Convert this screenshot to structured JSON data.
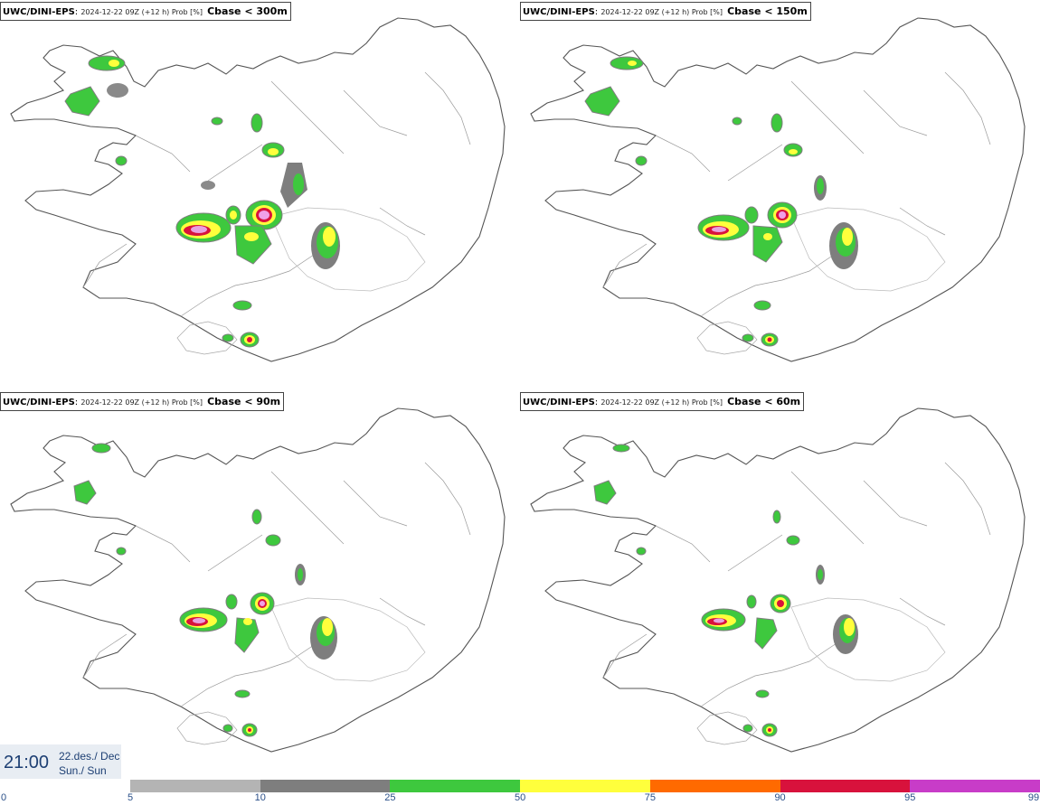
{
  "panels": [
    {
      "model": "UWC/DINI-EPS",
      "run": "2024-12-22 09Z (+12 h) Prob [%]",
      "condition": "Cbase < 300m"
    },
    {
      "model": "UWC/DINI-EPS",
      "run": "2024-12-22 09Z (+12 h) Prob [%]",
      "condition": "Cbase < 150m"
    },
    {
      "model": "UWC/DINI-EPS",
      "run": "2024-12-22 09Z (+12 h) Prob [%]",
      "condition": "Cbase < 90m"
    },
    {
      "model": "UWC/DINI-EPS",
      "run": "2024-12-22 09Z (+12 h) Prob [%]",
      "condition": "Cbase < 60m"
    }
  ],
  "valid_time": {
    "hour": "21:00",
    "date": "22.des./ Dec",
    "day": "Sun./ Sun"
  },
  "legend": {
    "ticks": [
      "0",
      "5",
      "10",
      "25",
      "50",
      "75",
      "90",
      "95",
      "99"
    ],
    "colors": [
      "#b4b4b4",
      "#7e7e7e",
      "#3ec83e",
      "#ffff3c",
      "#ff6a00",
      "#d8123c",
      "#c83cc8"
    ]
  }
}
